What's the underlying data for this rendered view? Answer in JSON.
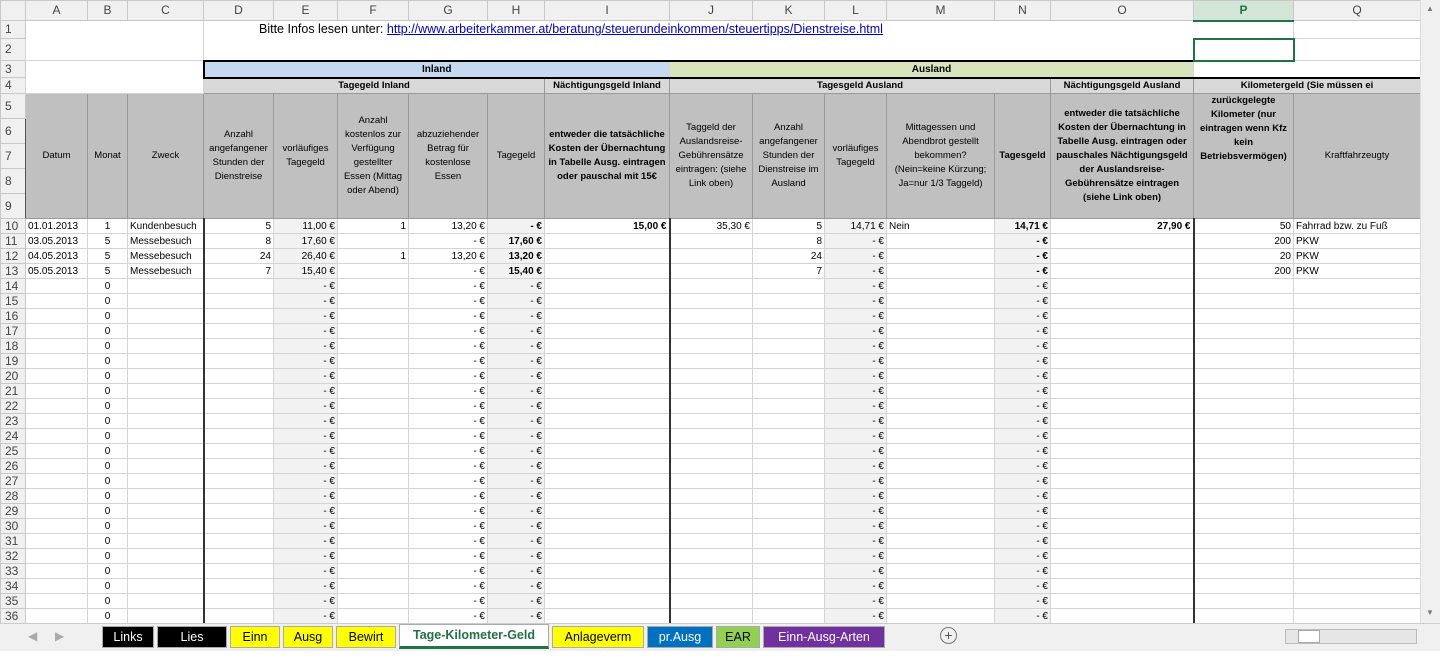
{
  "columns": [
    "A",
    "B",
    "C",
    "D",
    "E",
    "F",
    "G",
    "H",
    "I",
    "J",
    "K",
    "L",
    "M",
    "N",
    "O",
    "P",
    "Q"
  ],
  "selected_column": "P",
  "info_label": "Bitte Infos lesen unter:",
  "info_link": "http://www.arbeiterkammer.at/beratung/steuerundeinkommen/steuertipps/Dienstreise.html",
  "groups": {
    "inland": "Inland",
    "ausland": "Ausland",
    "inland_color": "#c5d9f1",
    "ausland_color": "#d8e4bc"
  },
  "subgroups": {
    "tagegeld_inland": "Tagegeld Inland",
    "naechtigung_inland": "Nächtigungsgeld Inland",
    "tagesgeld_ausland": "Tagesgeld Ausland",
    "naechtigung_ausland": "Nächtigungsgeld Ausland",
    "kilometergeld": "Kilometergeld (Sie müssen ei"
  },
  "headers": [
    "Datum",
    "Monat",
    "Zweck",
    "Anzahl angefangener Stunden der Dienstreise",
    "vorläufiges Tagegeld",
    "Anzahl kostenlos zur Verfügung gestellter Essen (Mittag oder Abend)",
    "abzuziehender Betrag für kostenlose Essen",
    "Tagegeld",
    "entweder die tatsächliche Kosten der Übernachtung in Tabelle Ausg. eintragen oder pauschal mit 15€",
    "Taggeld der Auslandsreise-Gebührensätze eintragen: (siehe Link oben)",
    "Anzahl angefangener Stunden der Dienstreise im Ausland",
    "vorläufiges Tagegeld",
    "Mittagessen und Abendbrot gestellt bekommen? (Nein=keine Kürzung; Ja=nur 1/3 Taggeld)",
    "Tagesgeld",
    "entweder die tatsächliche Kosten der Übernachtung in Tabelle Ausg. eintragen oder pauschales Nächtigungsgeld der Auslandsreise-Gebührensätze eintragen (siehe Link oben)",
    "zurückgelegte Kilometer (nur eintragen wenn Kfz kein Betriebsvermögen)",
    "Kraftfahrzeugty"
  ],
  "rows": [
    [
      "01.01.2013",
      "1",
      "Kundenbesuch",
      "5",
      "11,00 €",
      "1",
      "13,20 €",
      "-   €",
      "15,00 €",
      "35,30 €",
      "5",
      "14,71 €",
      "Nein",
      "14,71 €",
      "27,90 €",
      "50",
      "Fahrrad bzw. zu Fuß"
    ],
    [
      "03.05.2013",
      "5",
      "Messebesuch",
      "8",
      "17,60 €",
      "",
      "-   €",
      "17,60 €",
      "",
      "",
      "8",
      "-   €",
      "",
      "-   €",
      "",
      "200",
      "PKW"
    ],
    [
      "04.05.2013",
      "5",
      "Messebesuch",
      "24",
      "26,40 €",
      "1",
      "13,20 €",
      "13,20 €",
      "",
      "",
      "24",
      "-   €",
      "",
      "-   €",
      "",
      "20",
      "PKW"
    ],
    [
      "05.05.2013",
      "5",
      "Messebesuch",
      "7",
      "15,40 €",
      "",
      "-   €",
      "15,40 €",
      "",
      "",
      "7",
      "-   €",
      "",
      "-   €",
      "",
      "200",
      "PKW"
    ]
  ],
  "empty_row": [
    "",
    "0",
    "",
    "",
    "-   €",
    "",
    "-   €",
    "-   €",
    "",
    "",
    "",
    "-   €",
    "",
    "-   €",
    "",
    "",
    ""
  ],
  "sheet_tabs": [
    {
      "label": "Links",
      "bg": "#000000",
      "fg": "#ffffff"
    },
    {
      "label": "Lies mich!",
      "bg": "#000000",
      "fg": "#ffffff"
    },
    {
      "label": "Einn",
      "bg": "#ffff00",
      "fg": "#000000"
    },
    {
      "label": "Ausg",
      "bg": "#ffff00",
      "fg": "#000000"
    },
    {
      "label": "Bewirt",
      "bg": "#ffff00",
      "fg": "#000000"
    },
    {
      "label": "Tage-Kilometer-Geld",
      "bg": "#ffffff",
      "fg": "#217346",
      "active": true
    },
    {
      "label": "Anlageverm",
      "bg": "#ffff00",
      "fg": "#000000"
    },
    {
      "label": "pr.Ausg",
      "bg": "#0070c0",
      "fg": "#ffffff"
    },
    {
      "label": "EAR",
      "bg": "#92d050",
      "fg": "#000000"
    },
    {
      "label": "Einn-Ausg-Arten",
      "bg": "#7030a0",
      "fg": "#ffffff"
    }
  ],
  "add_sheet_icon": "plus-circle-icon"
}
